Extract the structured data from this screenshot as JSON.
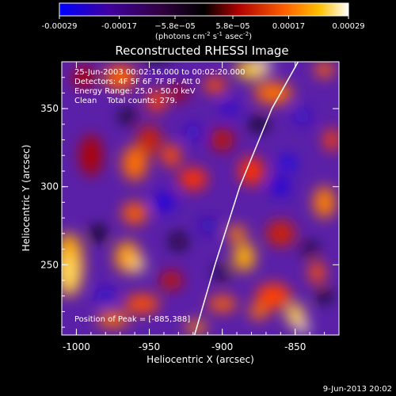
{
  "chart_data": {
    "type": "heatmap",
    "title": "Reconstructed RHESSI Image",
    "xlabel": "Heliocentric X (arcsec)",
    "ylabel": "Heliocentric Y (arcsec)",
    "x_ticks": [
      "-1000",
      "-950",
      "-900",
      "-850"
    ],
    "x_tick_values": [
      -1000,
      -950,
      -900,
      -850
    ],
    "y_ticks": [
      "250",
      "300",
      "350"
    ],
    "y_tick_values": [
      250,
      300,
      350
    ],
    "xlim": [
      -1010,
      -820
    ],
    "ylim": [
      205,
      380
    ],
    "colorbar": {
      "label_main": "(photons cm",
      "label_sup1": "-2",
      "label_mid": " s",
      "label_sup2": "-1",
      "label_end": " asec",
      "label_sup3": "-2",
      "label_close": ")",
      "ticks": [
        "-0.00029",
        "-0.00017",
        "−5.8e−05",
        "5.8e−05",
        "0.00017",
        "0.00029"
      ],
      "tick_values": [
        -0.00029,
        -0.00017,
        -5.8e-05,
        5.8e-05,
        0.00017,
        0.00029
      ],
      "range": [
        -0.00029,
        0.00029
      ]
    },
    "annotations": [
      "25-Jun-2003 00:02:16.000 to 00:02:20.000",
      "Detectors: 4F 5F 6F 7F 8F, Att 0",
      "Energy Range: 25.0 - 50.0 keV",
      "Clean    Total counts: 279."
    ],
    "peak_text": "Position of Peak = [-885,388]",
    "limb_curve": [
      [
        -919,
        205
      ],
      [
        -905,
        250
      ],
      [
        -888,
        300
      ],
      [
        -866,
        350
      ],
      [
        -848,
        380
      ]
    ],
    "date_stamp": "9-Jun-2013 20:02",
    "colormap": [
      "#0000ff",
      "#4000a0",
      "#000000",
      "#b00000",
      "#ff6000",
      "#ffc000",
      "#ffffff"
    ]
  }
}
